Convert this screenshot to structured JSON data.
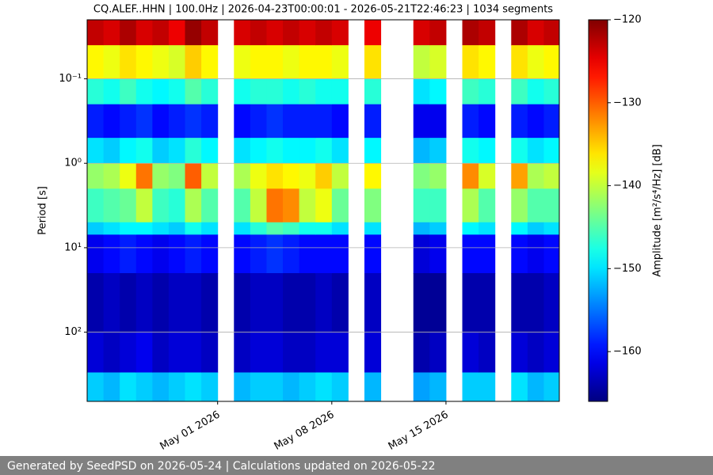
{
  "chart_data": {
    "type": "spectrogram",
    "title": "CQ.ALEF..HHN | 100.0Hz | 2026-04-23T00:00:01 - 2026-05-21T22:46:23 | 1034 segments",
    "y_label": "Period [s]",
    "colorbar_label": "Amplitude [m²/s⁴/Hz] [dB]",
    "colormap": "jet",
    "log_y": true,
    "y_inverted": true,
    "grid": "y",
    "x": [
      "2026-04-23",
      "2026-04-24",
      "2026-04-25",
      "2026-04-26",
      "2026-04-27",
      "2026-04-28",
      "2026-04-29",
      "2026-04-30",
      "2026-05-01",
      "2026-05-02",
      "2026-05-03",
      "2026-05-04",
      "2026-05-05",
      "2026-05-06",
      "2026-05-07",
      "2026-05-08",
      "2026-05-09",
      "2026-05-10",
      "2026-05-11",
      "2026-05-12",
      "2026-05-13",
      "2026-05-14",
      "2026-05-15",
      "2026-05-16",
      "2026-05-17",
      "2026-05-18",
      "2026-05-19",
      "2026-05-20",
      "2026-05-21"
    ],
    "y_bins": [
      0.02,
      0.04,
      0.1,
      0.2,
      0.5,
      1,
      2,
      5,
      7,
      20,
      100,
      300,
      660
    ],
    "values": [
      [
        -123,
        -137,
        -147,
        -159,
        -150,
        -142,
        -146,
        -151,
        -161,
        -164,
        -162,
        -151
      ],
      [
        -124,
        -138,
        -148,
        -160,
        -151,
        -141,
        -145,
        -150,
        -160,
        -163,
        -163,
        -152
      ],
      [
        -122,
        -136,
        -146,
        -159,
        -149,
        -138,
        -144,
        -149,
        -159,
        -164,
        -162,
        -150
      ],
      [
        -124,
        -137,
        -148,
        -158,
        -148,
        -131,
        -140,
        -149,
        -160,
        -163,
        -161,
        -151
      ],
      [
        -123,
        -138,
        -149,
        -160,
        -151,
        -142,
        -146,
        -150,
        -161,
        -164,
        -163,
        -152
      ],
      [
        -125,
        -139,
        -148,
        -159,
        -150,
        -143,
        -147,
        -151,
        -160,
        -163,
        -162,
        -151
      ],
      [
        -121,
        -135,
        -145,
        -158,
        -147,
        -130,
        -141,
        -148,
        -159,
        -163,
        -162,
        -150
      ],
      [
        -123,
        -137,
        -147,
        -159,
        -149,
        -140,
        -145,
        -150,
        -160,
        -164,
        -163,
        -151
      ],
      null,
      [
        -124,
        -138,
        -148,
        -160,
        -150,
        -141,
        -145,
        -150,
        -160,
        -164,
        -163,
        -152
      ],
      [
        -123,
        -137,
        -147,
        -159,
        -149,
        -138,
        -140,
        -147,
        -159,
        -163,
        -162,
        -151
      ],
      [
        -124,
        -137,
        -147,
        -158,
        -148,
        -136,
        -131,
        -145,
        -158,
        -163,
        -162,
        -151
      ],
      [
        -123,
        -138,
        -148,
        -159,
        -149,
        -137,
        -132,
        -146,
        -159,
        -164,
        -163,
        -152
      ],
      [
        -124,
        -137,
        -147,
        -159,
        -149,
        -138,
        -140,
        -148,
        -160,
        -164,
        -163,
        -151
      ],
      [
        -123,
        -137,
        -148,
        -159,
        -148,
        -135,
        -138,
        -148,
        -160,
        -163,
        -162,
        -150
      ],
      [
        -124,
        -138,
        -148,
        -160,
        -150,
        -140,
        -144,
        -150,
        -160,
        -164,
        -162,
        -151
      ],
      null,
      [
        -125,
        -136,
        -147,
        -159,
        -149,
        -137,
        -143,
        -150,
        -160,
        -163,
        -162,
        -152
      ],
      null,
      null,
      [
        -124,
        -140,
        -150,
        -161,
        -152,
        -143,
        -146,
        -152,
        -162,
        -165,
        -164,
        -153
      ],
      [
        -123,
        -139,
        -149,
        -161,
        -151,
        -142,
        -146,
        -151,
        -161,
        -165,
        -163,
        -152
      ],
      null,
      [
        -122,
        -136,
        -146,
        -159,
        -148,
        -132,
        -141,
        -149,
        -160,
        -164,
        -162,
        -151
      ],
      [
        -123,
        -137,
        -147,
        -160,
        -149,
        -139,
        -145,
        -150,
        -160,
        -164,
        -163,
        -151
      ],
      null,
      [
        -122,
        -136,
        -146,
        -159,
        -148,
        -133,
        -142,
        -149,
        -160,
        -164,
        -162,
        -150
      ],
      [
        -124,
        -138,
        -148,
        -160,
        -150,
        -141,
        -145,
        -151,
        -161,
        -164,
        -163,
        -152
      ],
      [
        -123,
        -137,
        -147,
        -159,
        -149,
        -140,
        -145,
        -150,
        -160,
        -163,
        -162,
        -151
      ]
    ],
    "xlim": [
      "2026-04-23T00:00:01",
      "2026-05-21T22:46:23"
    ],
    "xticks": [
      {
        "value": "2026-05-01",
        "label": "May 01 2026"
      },
      {
        "value": "2026-05-08",
        "label": "May 08 2026"
      },
      {
        "value": "2026-05-15",
        "label": "May 15 2026"
      }
    ],
    "ylim": [
      0.02,
      660
    ],
    "yticks": [
      {
        "value": 0.1,
        "label": "10⁻¹"
      },
      {
        "value": 1,
        "label": "10⁰"
      },
      {
        "value": 10,
        "label": "10¹"
      },
      {
        "value": 100,
        "label": "10²"
      }
    ],
    "clim": [
      -166,
      -120
    ],
    "cticks": [
      {
        "value": -120,
        "label": "−120"
      },
      {
        "value": -130,
        "label": "−130"
      },
      {
        "value": -140,
        "label": "−140"
      },
      {
        "value": -150,
        "label": "−150"
      },
      {
        "value": -160,
        "label": "−160"
      }
    ]
  },
  "footer": "Generated by SeedPSD on 2026-05-24 | Calculations updated on 2026-05-22"
}
